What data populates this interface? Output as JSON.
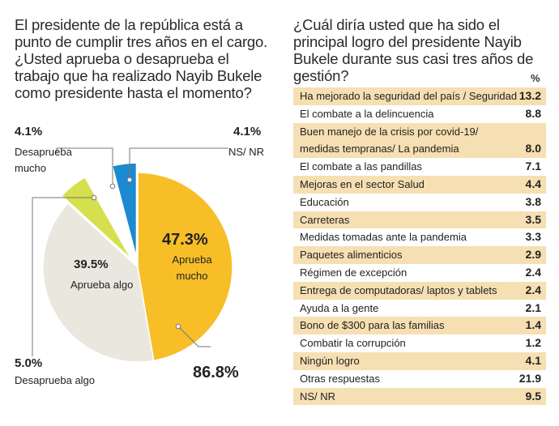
{
  "left_question": "El presidente de la república está a punto de cumplir tres años en el cargo. ¿Usted aprueba o desaprueba el trabajo que ha realizado Nayib Bukele como presidente hasta el momento?",
  "right_question": "¿Cuál diría usted que ha sido el principal logro del presidente Nayib Bukele durante sus casi tres años de gestión?",
  "percent_header": "%",
  "colors": {
    "aprueba_mucho": "#f7be27",
    "aprueba_algo": "#eae7df",
    "desaprueba_algo": "#d6df4e",
    "desaprueba_mucho": "#ffffff",
    "ns_nr": "#1b8ad0",
    "table_tint": "#f6dfb2"
  },
  "pie_labels": {
    "aprueba_mucho_pct": "47.3%",
    "aprueba_mucho_text": "Aprueba mucho",
    "aprueba_algo_pct": "39.5%",
    "aprueba_algo_text": "Aprueba algo",
    "desaprueba_mucho_pct": "4.1%",
    "desaprueba_mucho_text": "Desaprueba mucho",
    "ns_nr_pct": "4.1%",
    "ns_nr_text": "NS/ NR",
    "desaprueba_algo_pct": "5.0%",
    "desaprueba_algo_text": "Desaprueba algo",
    "total_approve": "86.8%"
  },
  "chart_data": [
    {
      "type": "pie",
      "slices": [
        {
          "label": "Aprueba mucho",
          "value": 47.3
        },
        {
          "label": "Aprueba algo",
          "value": 39.5
        },
        {
          "label": "Desaprueba algo",
          "value": 5.0
        },
        {
          "label": "Desaprueba mucho",
          "value": 4.1
        },
        {
          "label": "NS/ NR",
          "value": 4.1
        }
      ],
      "annotation": "86.8%"
    },
    {
      "type": "table",
      "columns": [
        "",
        "%"
      ],
      "rows": [
        {
          "label": "Ha mejorado la seguridad del país / Seguridad",
          "value": "13.2"
        },
        {
          "label": "El combate a la delincuencia",
          "value": "8.8"
        },
        {
          "label": "Buen manejo de la crisis por covid-19/ medidas tempranas/ La pandemia",
          "value": "8.0"
        },
        {
          "label": "El combate a las pandillas",
          "value": "7.1"
        },
        {
          "label": "Mejoras en el sector Salud",
          "value": "4.4"
        },
        {
          "label": "Educación",
          "value": "3.8"
        },
        {
          "label": "Carreteras",
          "value": "3.5"
        },
        {
          "label": "Medidas tomadas ante la pandemia",
          "value": "3.3"
        },
        {
          "label": "Paquetes alimenticios",
          "value": "2.9"
        },
        {
          "label": "Régimen de excepción",
          "value": "2.4"
        },
        {
          "label": "Entrega de computadoras/ laptos y tablets",
          "value": "2.4"
        },
        {
          "label": "Ayuda a la gente",
          "value": "2.1"
        },
        {
          "label": "Bono de $300 para las familias",
          "value": "1.4"
        },
        {
          "label": "Combatir la corrupción",
          "value": "1.2"
        },
        {
          "label": "Ningún logro",
          "value": "4.1"
        },
        {
          "label": "Otras respuestas",
          "value": "21.9"
        },
        {
          "label": "NS/ NR",
          "value": "9.5"
        }
      ]
    }
  ],
  "table_rows": [
    {
      "label": "Ha mejorado la seguridad del país / Seguridad",
      "value": "13.2"
    },
    {
      "label": "El combate a la delincuencia",
      "value": "8.8"
    },
    {
      "label": "Buen manejo de la crisis por covid-19/",
      "label2": "medidas tempranas/ La pandemia",
      "value": "8.0"
    },
    {
      "label": "El combate a las pandillas",
      "value": "7.1"
    },
    {
      "label": "Mejoras en el sector Salud",
      "value": "4.4"
    },
    {
      "label": "Educación",
      "value": "3.8"
    },
    {
      "label": "Carreteras",
      "value": "3.5"
    },
    {
      "label": "Medidas tomadas ante la pandemia",
      "value": "3.3"
    },
    {
      "label": "Paquetes alimenticios",
      "value": "2.9"
    },
    {
      "label": "Régimen de excepción",
      "value": "2.4"
    },
    {
      "label": "Entrega de computadoras/ laptos y tablets",
      "value": "2.4"
    },
    {
      "label": "Ayuda a la gente",
      "value": "2.1"
    },
    {
      "label": "Bono de $300 para las familias",
      "value": "1.4"
    },
    {
      "label": "Combatir la corrupción",
      "value": "1.2"
    },
    {
      "label": "Ningún logro",
      "value": "4.1"
    },
    {
      "label": "Otras respuestas",
      "value": "21.9"
    },
    {
      "label": "NS/ NR",
      "value": "9.5"
    }
  ]
}
